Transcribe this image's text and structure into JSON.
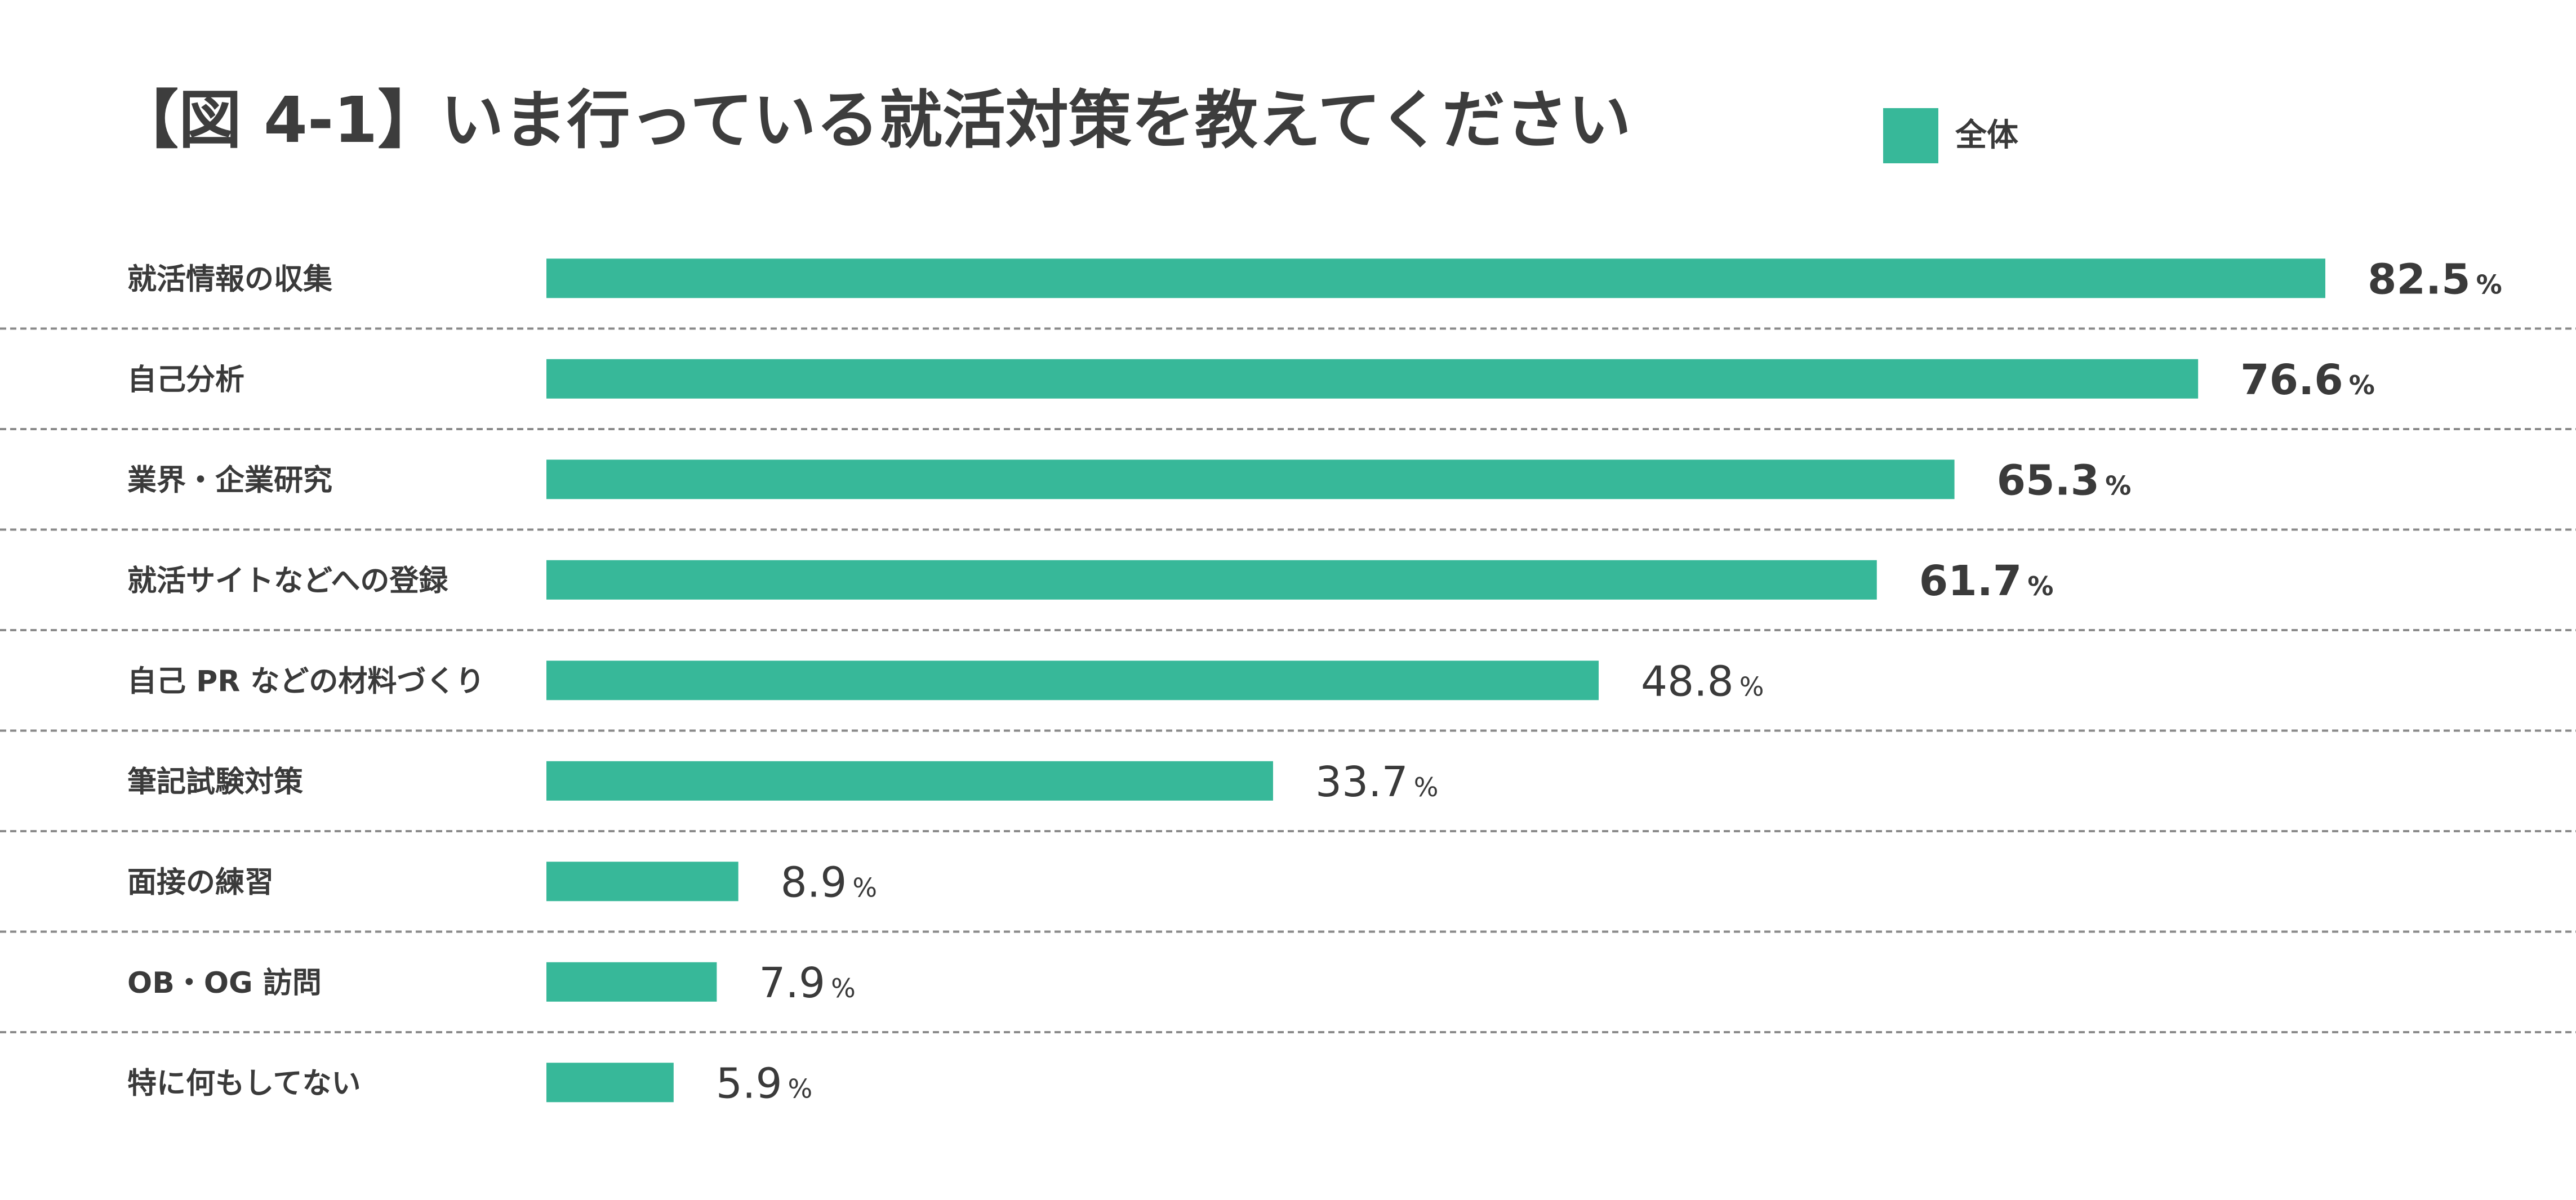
{
  "chart_data": {
    "type": "bar",
    "orientation": "horizontal",
    "title": "【図 4-1】いま行っている就活対策を教えてください",
    "legend": {
      "position": "top-right",
      "entries": [
        "全体"
      ]
    },
    "value_unit": "%",
    "xlim": [
      0,
      100
    ],
    "grid": false,
    "row_separators": "dashed",
    "categories": [
      "就活情報の収集",
      "自己分析",
      "業界・企業研究",
      "就活サイトなどへの登録",
      "自己 PR などの材料づくり",
      "筆記試験対策",
      "面接の練習",
      "OB・OG 訪問",
      "特に何もしてない"
    ],
    "series": [
      {
        "name": "全体",
        "color": "#37b899",
        "values": [
          82.5,
          76.6,
          65.3,
          61.7,
          48.8,
          33.7,
          8.9,
          7.9,
          5.9
        ]
      }
    ],
    "value_labels": [
      "82.5",
      "76.6",
      "65.3",
      "61.7",
      "48.8",
      "33.7",
      "8.9",
      "7.9",
      "5.9"
    ]
  },
  "colors": {
    "bar": "#37b899",
    "text": "#3a3a3a",
    "separator": "#8a8a8a"
  }
}
